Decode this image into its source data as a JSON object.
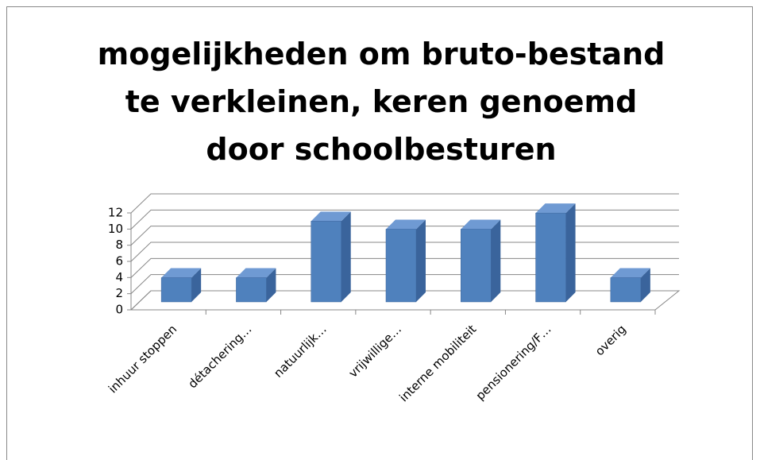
{
  "chart_data": {
    "type": "bar3d",
    "title": "mogelijkheden om bruto-bestand te verkleinen, keren genoemd door schoolbesturen",
    "categories": [
      "inhuur stoppen",
      "détachering…",
      "natuurlijk…",
      "vrijwillige…",
      "interne mobiliteit",
      "pensionering/F…",
      "overig"
    ],
    "values": [
      3,
      3,
      10,
      9,
      9,
      11,
      3
    ],
    "color": "#4f81bd",
    "ylim": [
      0,
      12
    ],
    "yticks": [
      0,
      2,
      4,
      6,
      8,
      10,
      12
    ],
    "grid": true
  }
}
